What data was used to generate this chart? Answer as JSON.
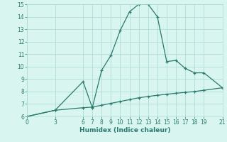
{
  "xlabel": "Humidex (Indice chaleur)",
  "line1_x": [
    0,
    3,
    6,
    7,
    8,
    9,
    10,
    11,
    12,
    13,
    14,
    15,
    16,
    17,
    18,
    19,
    21
  ],
  "line1_y": [
    6.0,
    6.5,
    8.8,
    6.7,
    9.7,
    10.9,
    12.9,
    14.4,
    15.0,
    15.0,
    14.0,
    10.4,
    10.5,
    9.85,
    9.5,
    9.5,
    8.3
  ],
  "line2_x": [
    0,
    3,
    6,
    7,
    8,
    9,
    10,
    11,
    12,
    13,
    14,
    15,
    16,
    17,
    18,
    19,
    21
  ],
  "line2_y": [
    6.0,
    6.5,
    6.7,
    6.75,
    6.9,
    7.05,
    7.2,
    7.35,
    7.5,
    7.6,
    7.7,
    7.78,
    7.86,
    7.93,
    8.0,
    8.1,
    8.3
  ],
  "line_color": "#2a7a6e",
  "bg_color": "#d8f5f0",
  "grid_color": "#b0ddd8",
  "xlim": [
    0,
    21
  ],
  "ylim": [
    6,
    15
  ],
  "xticks": [
    0,
    3,
    6,
    7,
    8,
    9,
    10,
    11,
    12,
    13,
    14,
    15,
    16,
    17,
    18,
    19,
    21
  ],
  "yticks": [
    6,
    7,
    8,
    9,
    10,
    11,
    12,
    13,
    14,
    15
  ],
  "marker": "+",
  "markersize": 3.5,
  "markeredgewidth": 0.9,
  "linewidth": 0.9,
  "tick_fontsize": 5.5,
  "xlabel_fontsize": 6.5
}
